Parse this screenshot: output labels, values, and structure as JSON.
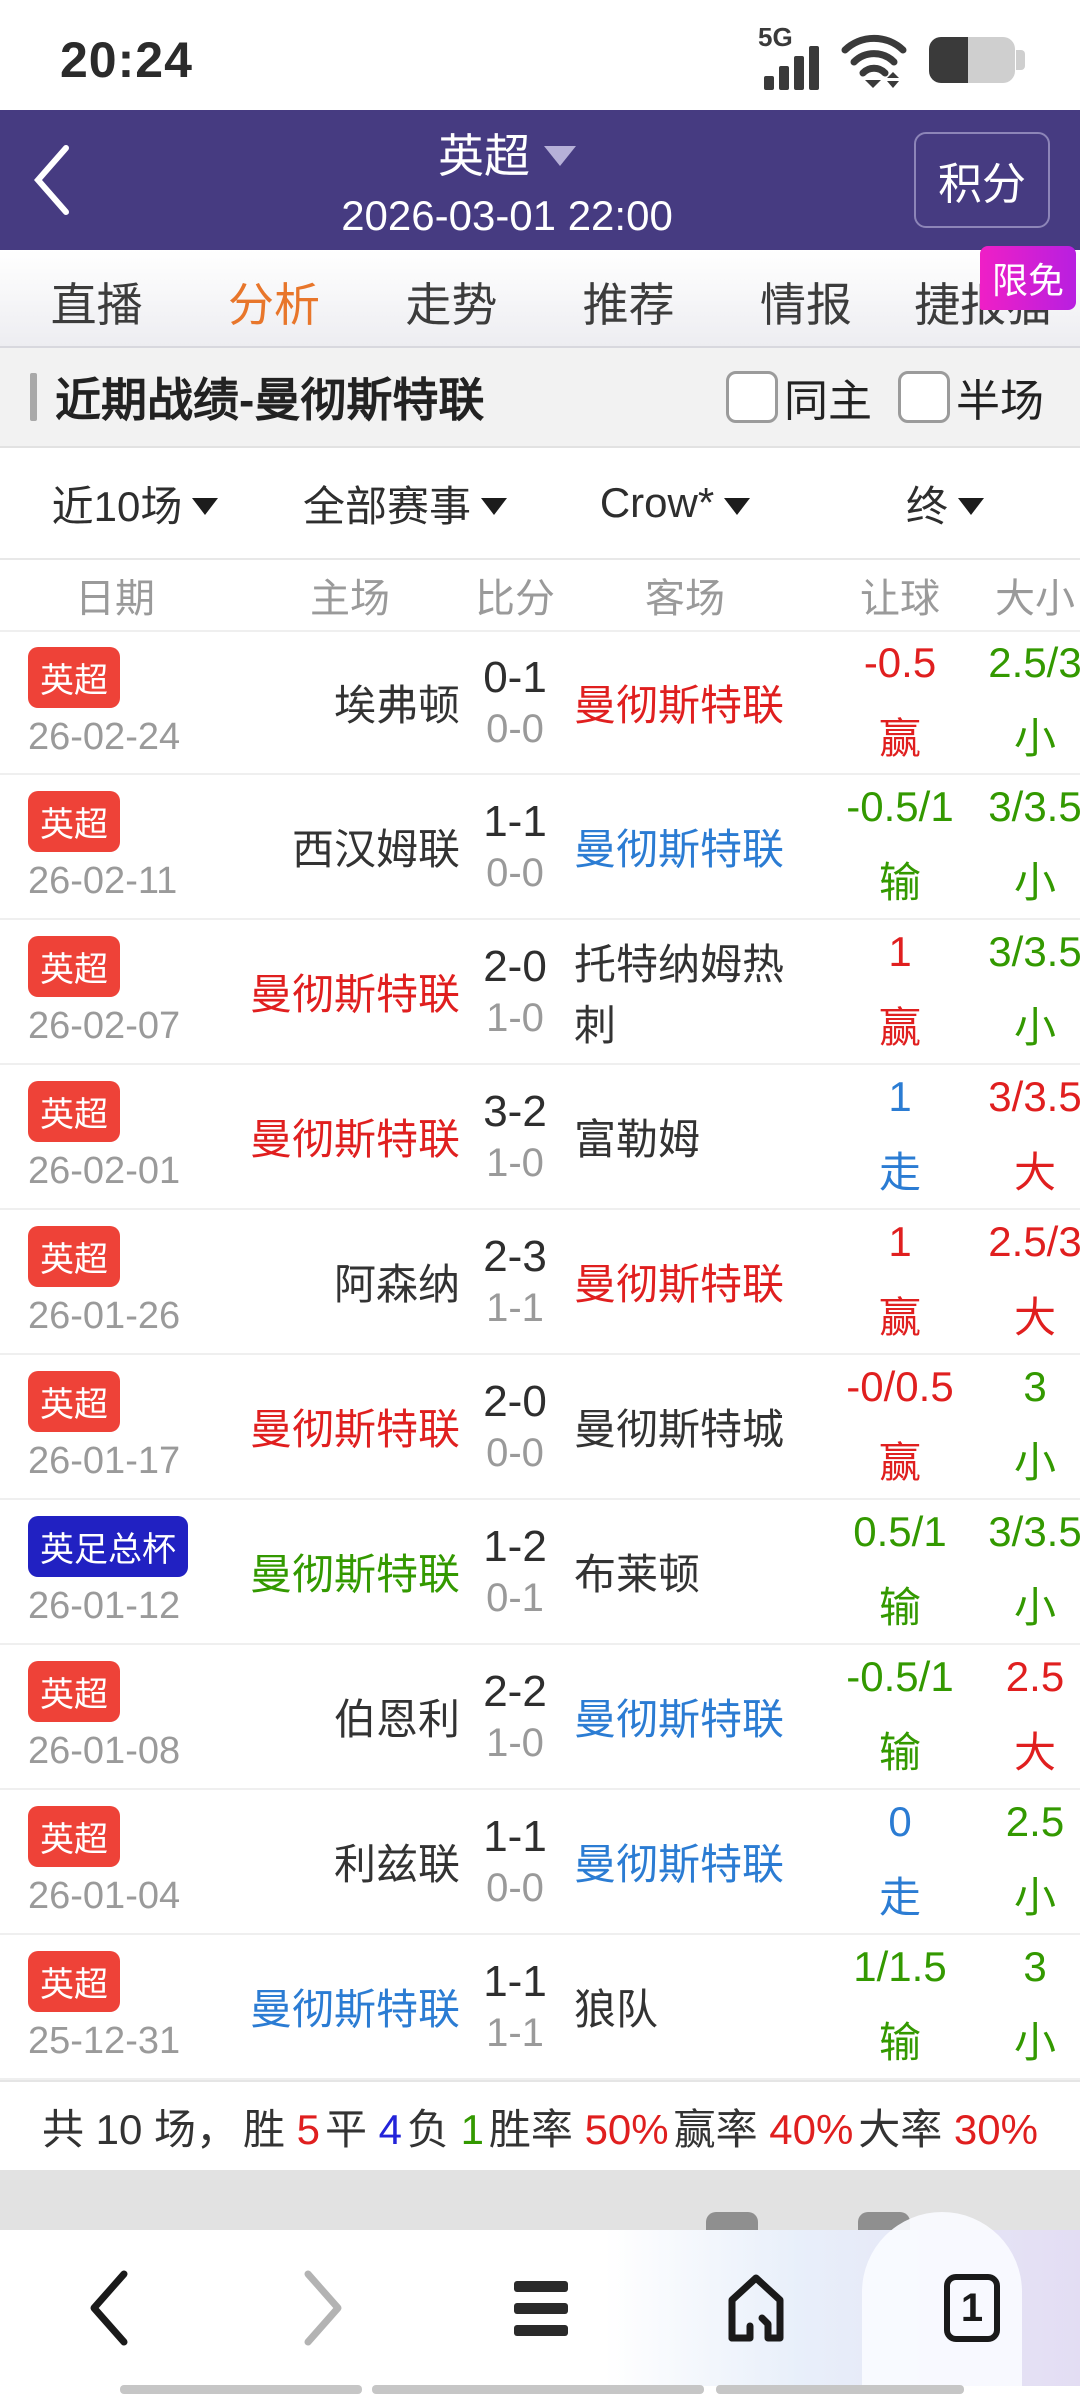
{
  "colors": {
    "header_purple": "#463b81",
    "active_tab_orange": "#e8762b",
    "promo_pink": "#ef1fc6",
    "badge_red": "#ee4238",
    "badge_blue": "#2121c2",
    "text_red": "#e01f1f",
    "text_green": "#339900",
    "text_blue": "#2b7cd3",
    "text_deep_blue": "#2323d9",
    "text_gray": "#9a9a9a"
  },
  "status_bar": {
    "time": "20:24",
    "network_label": "5G"
  },
  "header": {
    "league": "英超",
    "datetime": "2026-03-01 22:00",
    "points_button": "积分"
  },
  "tabs": {
    "items": [
      {
        "label": "直播",
        "active": false
      },
      {
        "label": "分析",
        "active": true
      },
      {
        "label": "走势",
        "active": false
      },
      {
        "label": "推荐",
        "active": false
      },
      {
        "label": "情报",
        "active": false
      },
      {
        "label": "捷报猫",
        "active": false
      }
    ],
    "promo_badge": "限免"
  },
  "section": {
    "title": "近期战绩-曼彻斯特联",
    "checkboxes": [
      {
        "label": "同主",
        "checked": false
      },
      {
        "label": "半场",
        "checked": false
      }
    ]
  },
  "filters": [
    {
      "label": "近10场"
    },
    {
      "label": "全部赛事"
    },
    {
      "label": "Crow*"
    },
    {
      "label": "终"
    }
  ],
  "table": {
    "headers": [
      "日期",
      "主场",
      "比分",
      "客场",
      "让球",
      "大小"
    ],
    "rows": [
      {
        "league": "英超",
        "badge": "red",
        "date": "26-02-24",
        "home": "埃弗顿",
        "home_color": "dark",
        "score": "0-1",
        "half": "0-0",
        "away": "曼彻斯特联",
        "away_color": "red",
        "hcp": "-0.5",
        "hcp_result": "赢",
        "hcp_color": "red",
        "ou": "2.5/3",
        "ou_result": "小",
        "ou_color": "green"
      },
      {
        "league": "英超",
        "badge": "red",
        "date": "26-02-11",
        "home": "西汉姆联",
        "home_color": "dark",
        "score": "1-1",
        "half": "0-0",
        "away": "曼彻斯特联",
        "away_color": "blue",
        "hcp": "-0.5/1",
        "hcp_result": "输",
        "hcp_color": "green",
        "ou": "3/3.5",
        "ou_result": "小",
        "ou_color": "green"
      },
      {
        "league": "英超",
        "badge": "red",
        "date": "26-02-07",
        "home": "曼彻斯特联",
        "home_color": "red",
        "score": "2-0",
        "half": "1-0",
        "away": "托特纳姆热刺",
        "away_color": "dark",
        "hcp": "1",
        "hcp_result": "赢",
        "hcp_color": "red",
        "ou": "3/3.5",
        "ou_result": "小",
        "ou_color": "green"
      },
      {
        "league": "英超",
        "badge": "red",
        "date": "26-02-01",
        "home": "曼彻斯特联",
        "home_color": "red",
        "score": "3-2",
        "half": "1-0",
        "away": "富勒姆",
        "away_color": "dark",
        "hcp": "1",
        "hcp_result": "走",
        "hcp_color": "blue",
        "ou": "3/3.5",
        "ou_result": "大",
        "ou_color": "red"
      },
      {
        "league": "英超",
        "badge": "red",
        "date": "26-01-26",
        "home": "阿森纳",
        "home_color": "dark",
        "score": "2-3",
        "half": "1-1",
        "away": "曼彻斯特联",
        "away_color": "red",
        "hcp": "1",
        "hcp_result": "赢",
        "hcp_color": "red",
        "ou": "2.5/3",
        "ou_result": "大",
        "ou_color": "red"
      },
      {
        "league": "英超",
        "badge": "red",
        "date": "26-01-17",
        "home": "曼彻斯特联",
        "home_color": "red",
        "score": "2-0",
        "half": "0-0",
        "away": "曼彻斯特城",
        "away_color": "dark",
        "hcp": "-0/0.5",
        "hcp_result": "赢",
        "hcp_color": "red",
        "ou": "3",
        "ou_result": "小",
        "ou_color": "green"
      },
      {
        "league": "英足总杯",
        "badge": "blue",
        "date": "26-01-12",
        "home": "曼彻斯特联",
        "home_color": "green",
        "score": "1-2",
        "half": "0-1",
        "away": "布莱顿",
        "away_color": "dark",
        "hcp": "0.5/1",
        "hcp_result": "输",
        "hcp_color": "green",
        "ou": "3/3.5",
        "ou_result": "小",
        "ou_color": "green"
      },
      {
        "league": "英超",
        "badge": "red",
        "date": "26-01-08",
        "home": "伯恩利",
        "home_color": "dark",
        "score": "2-2",
        "half": "1-0",
        "away": "曼彻斯特联",
        "away_color": "blue",
        "hcp": "-0.5/1",
        "hcp_result": "输",
        "hcp_color": "green",
        "ou": "2.5",
        "ou_result": "大",
        "ou_color": "red"
      },
      {
        "league": "英超",
        "badge": "red",
        "date": "26-01-04",
        "home": "利兹联",
        "home_color": "dark",
        "score": "1-1",
        "half": "0-0",
        "away": "曼彻斯特联",
        "away_color": "blue",
        "hcp": "0",
        "hcp_result": "走",
        "hcp_color": "blue",
        "ou": "2.5",
        "ou_result": "小",
        "ou_color": "green"
      },
      {
        "league": "英超",
        "badge": "red",
        "date": "25-12-31",
        "home": "曼彻斯特联",
        "home_color": "blue",
        "score": "1-1",
        "half": "1-1",
        "away": "狼队",
        "away_color": "dark",
        "hcp": "1/1.5",
        "hcp_result": "输",
        "hcp_color": "green",
        "ou": "3",
        "ou_result": "小",
        "ou_color": "green"
      }
    ]
  },
  "summary": {
    "groups": [
      {
        "label": "共 10 场，",
        "value": "",
        "value_color": "dark"
      },
      {
        "label": "胜 ",
        "value": "5",
        "value_color": "red"
      },
      {
        "label": "平 ",
        "value": "4",
        "value_color": "blue2"
      },
      {
        "label": "负 ",
        "value": "1",
        "value_color": "green"
      },
      {
        "label": "胜率 ",
        "value": "50%",
        "value_color": "red"
      },
      {
        "label": "赢率 ",
        "value": "40%",
        "value_color": "red"
      },
      {
        "label": "大率 ",
        "value": "30%",
        "value_color": "red"
      }
    ]
  },
  "bottom_nav": {
    "tab_count": "1"
  }
}
